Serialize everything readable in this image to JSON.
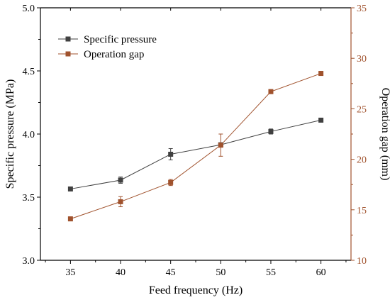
{
  "chart_data": {
    "type": "line",
    "x": [
      35,
      40,
      45,
      50,
      55,
      60
    ],
    "xlabel": "Feed frequency (Hz)",
    "xlim": [
      32,
      63
    ],
    "xticks": [
      35,
      40,
      45,
      50,
      55,
      60
    ],
    "ylabel": "Specific pressure  (MPa)",
    "ylim": [
      3.0,
      5.0
    ],
    "yticks": [
      "3.0",
      "3.5",
      "4.0",
      "4.5",
      "5.0"
    ],
    "y2label": "Operation gap (mm)",
    "y2lim": [
      10,
      35
    ],
    "y2ticks": [
      "10",
      "15",
      "20",
      "25",
      "30",
      "35"
    ],
    "legend_position": "top-left",
    "grid": false,
    "series": [
      {
        "name": "Specific pressure",
        "axis": "left",
        "color": "#404040",
        "values": [
          3.565,
          3.635,
          3.84,
          3.915,
          4.02,
          4.11
        ],
        "errors": [
          0.01,
          0.025,
          0.045,
          0.015,
          0.02,
          0.01
        ]
      },
      {
        "name": "Operation gap",
        "axis": "right",
        "color": "#a0522d",
        "values": [
          14.1,
          15.8,
          17.7,
          21.4,
          26.7,
          28.5
        ],
        "errors": [
          0.2,
          0.5,
          0.3,
          1.1,
          0.2,
          0.2
        ]
      }
    ]
  }
}
